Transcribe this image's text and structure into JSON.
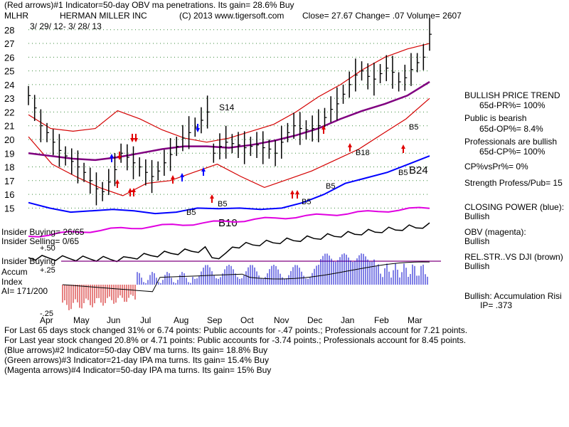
{
  "header": {
    "line1": "(Red arrows)#1 Indicator=50-day OBV ma penetrations. Its gain= 28.6% Buy",
    "symbol": "MLHR",
    "company": "HERMAN MILLER INC",
    "copyright": "(C) 2013 www.tigersoft.com",
    "quote": "Close= 27.67  Change= .07 Volume= 2607",
    "date_range": "3/ 29/ 12- 3/ 28/ 13"
  },
  "right_panel": {
    "trend_title": "BULLISH PRICE TREND",
    "pr": "65d-PR%= 100%",
    "public_title": "Public is bearish",
    "op": "65d-OP%= 8.4%",
    "prof_title": "Professionals are bullish",
    "cp": "65d-CP%= 100%",
    "cp_vs_pr": "CP%vsPr%= 0%",
    "strength": "Strength Profess/Pub= 15",
    "closing_power": "CLOSING POWER (blue):",
    "closing_power_val": "Bullish",
    "obv": "OBV (magenta):",
    "obv_val": "Bullish",
    "relstr": "REL.STR..VS DJI (brown)",
    "relstr_val": "Bullish",
    "accum": "Bullish: Accumulation Risi",
    "ip": "IP= .373"
  },
  "left_labels": {
    "insider_buying_ratio": "Insider Buying= 26/65",
    "insider_selling_ratio": "Insider Selling= 0/65",
    "plus50": "+.50",
    "insider_buying": "Insider Buying",
    "accum": "Accum",
    "plus25": "+.25",
    "index": "Index",
    "ai": "AI= 171/200",
    "minus25": "-.25"
  },
  "footer": {
    "l1": "For Last 65 days stock changed  31% or  6.74 points:  Public accounts for -.47 points.;  Professionals account for  7.21 points.",
    "l2": "For Last year stock changed  20.8% or  4.71 points:  Public accounts for -3.74 points.;  Professionals account for  8.45 points.",
    "l3": "(Blue arrows)#2 Indicator=50-day OBV ma turns. Its gain= 18.8% Buy",
    "l4": "(Green arrows)#3 Indicator=21-day IPA ma turns. Its gain= 15.4% Buy",
    "l5": "(Magenta arrows)#4 Indicator=50-day IPA ma turns. Its gain= 15% Buy"
  },
  "chart_data": {
    "type": "line",
    "title": "HERMAN MILLER INC (MLHR) 3/29/12 - 3/28/13",
    "y_ticks": [
      28,
      27,
      26,
      25,
      24,
      23,
      22,
      21,
      20,
      19,
      18,
      17,
      16,
      15
    ],
    "ylim": [
      14.5,
      28.3
    ],
    "months": [
      "Apr",
      "May",
      "Jun",
      "Jul",
      "Aug",
      "Sep",
      "Oct",
      "Nov",
      "Dec",
      "Jan",
      "Feb",
      "Mar"
    ],
    "price_closes": [
      23.2,
      22.3,
      21.0,
      20.5,
      19.8,
      19.2,
      18.8,
      18.4,
      18.0,
      17.6,
      17.0,
      16.4,
      16.2,
      16.9,
      17.8,
      19.0,
      18.7,
      18.3,
      18.0,
      17.6,
      17.3,
      17.7,
      18.3,
      18.9,
      19.5,
      20.1,
      20.5,
      20.9,
      21.4,
      22.0,
      19.0,
      19.5,
      19.8,
      19.7,
      19.6,
      19.4,
      19.5,
      19.6,
      19.4,
      19.3,
      19.0,
      19.8,
      20.5,
      21.0,
      20.8,
      20.7,
      20.8,
      21.0,
      21.6,
      22.2,
      22.6,
      23.3,
      24.0,
      24.7,
      25.0,
      24.6,
      24.4,
      24.8,
      25.2,
      24.9,
      24.2,
      24.5,
      25.1,
      25.6,
      26.0,
      27.67
    ],
    "upper_band": [
      21.8,
      20.8,
      20.6,
      20.8,
      22.1,
      21.5,
      20.7,
      20.1,
      19.8,
      20.1,
      20.6,
      21.1,
      22.0,
      23.1,
      24.0,
      25.1,
      26.0,
      26.6,
      27.0
    ],
    "lower_band": [
      20.2,
      18.2,
      17.3,
      16.5,
      15.9,
      16.8,
      17.0,
      17.6,
      18.2,
      17.3,
      16.5,
      17.1,
      17.7,
      18.5,
      19.3,
      20.4,
      21.5,
      23.0
    ],
    "purple_ma": [
      19.0,
      18.8,
      18.6,
      18.5,
      18.7,
      19.0,
      19.3,
      19.5,
      19.5,
      19.4,
      19.6,
      19.9,
      20.3,
      20.8,
      21.5,
      22.1,
      22.6,
      23.2,
      24.2
    ],
    "closing_power": [
      15.4,
      15.0,
      14.7,
      14.8,
      14.9,
      14.8,
      14.6,
      14.7,
      15.0,
      14.95,
      15.0,
      14.9,
      15.0,
      15.4,
      16.0,
      16.8,
      17.2,
      17.6,
      18.2,
      18.8
    ],
    "signals": [
      "S14",
      "B5",
      "B5",
      "B10",
      "B5",
      "B5",
      "B18",
      "B5",
      "B5",
      "B24"
    ],
    "series": [
      {
        "name": "Price",
        "color": "#000000"
      },
      {
        "name": "Closing Power",
        "color": "#0000ff"
      },
      {
        "name": "OBV",
        "color": "#ff00ff"
      },
      {
        "name": "Rel.Str vs DJI",
        "color": "#8b4513"
      }
    ],
    "colors": {
      "price": "#000000",
      "band": "#d40000",
      "ma": "#800080",
      "closing_power": "#0000ff",
      "obv": "#e000e0",
      "accum_pos": "#0000cc",
      "accum_neg": "#cc0000",
      "grid": "#3a8a3a",
      "buy_arrow": "#e00000",
      "blue_arrow": "#0000ff"
    }
  }
}
